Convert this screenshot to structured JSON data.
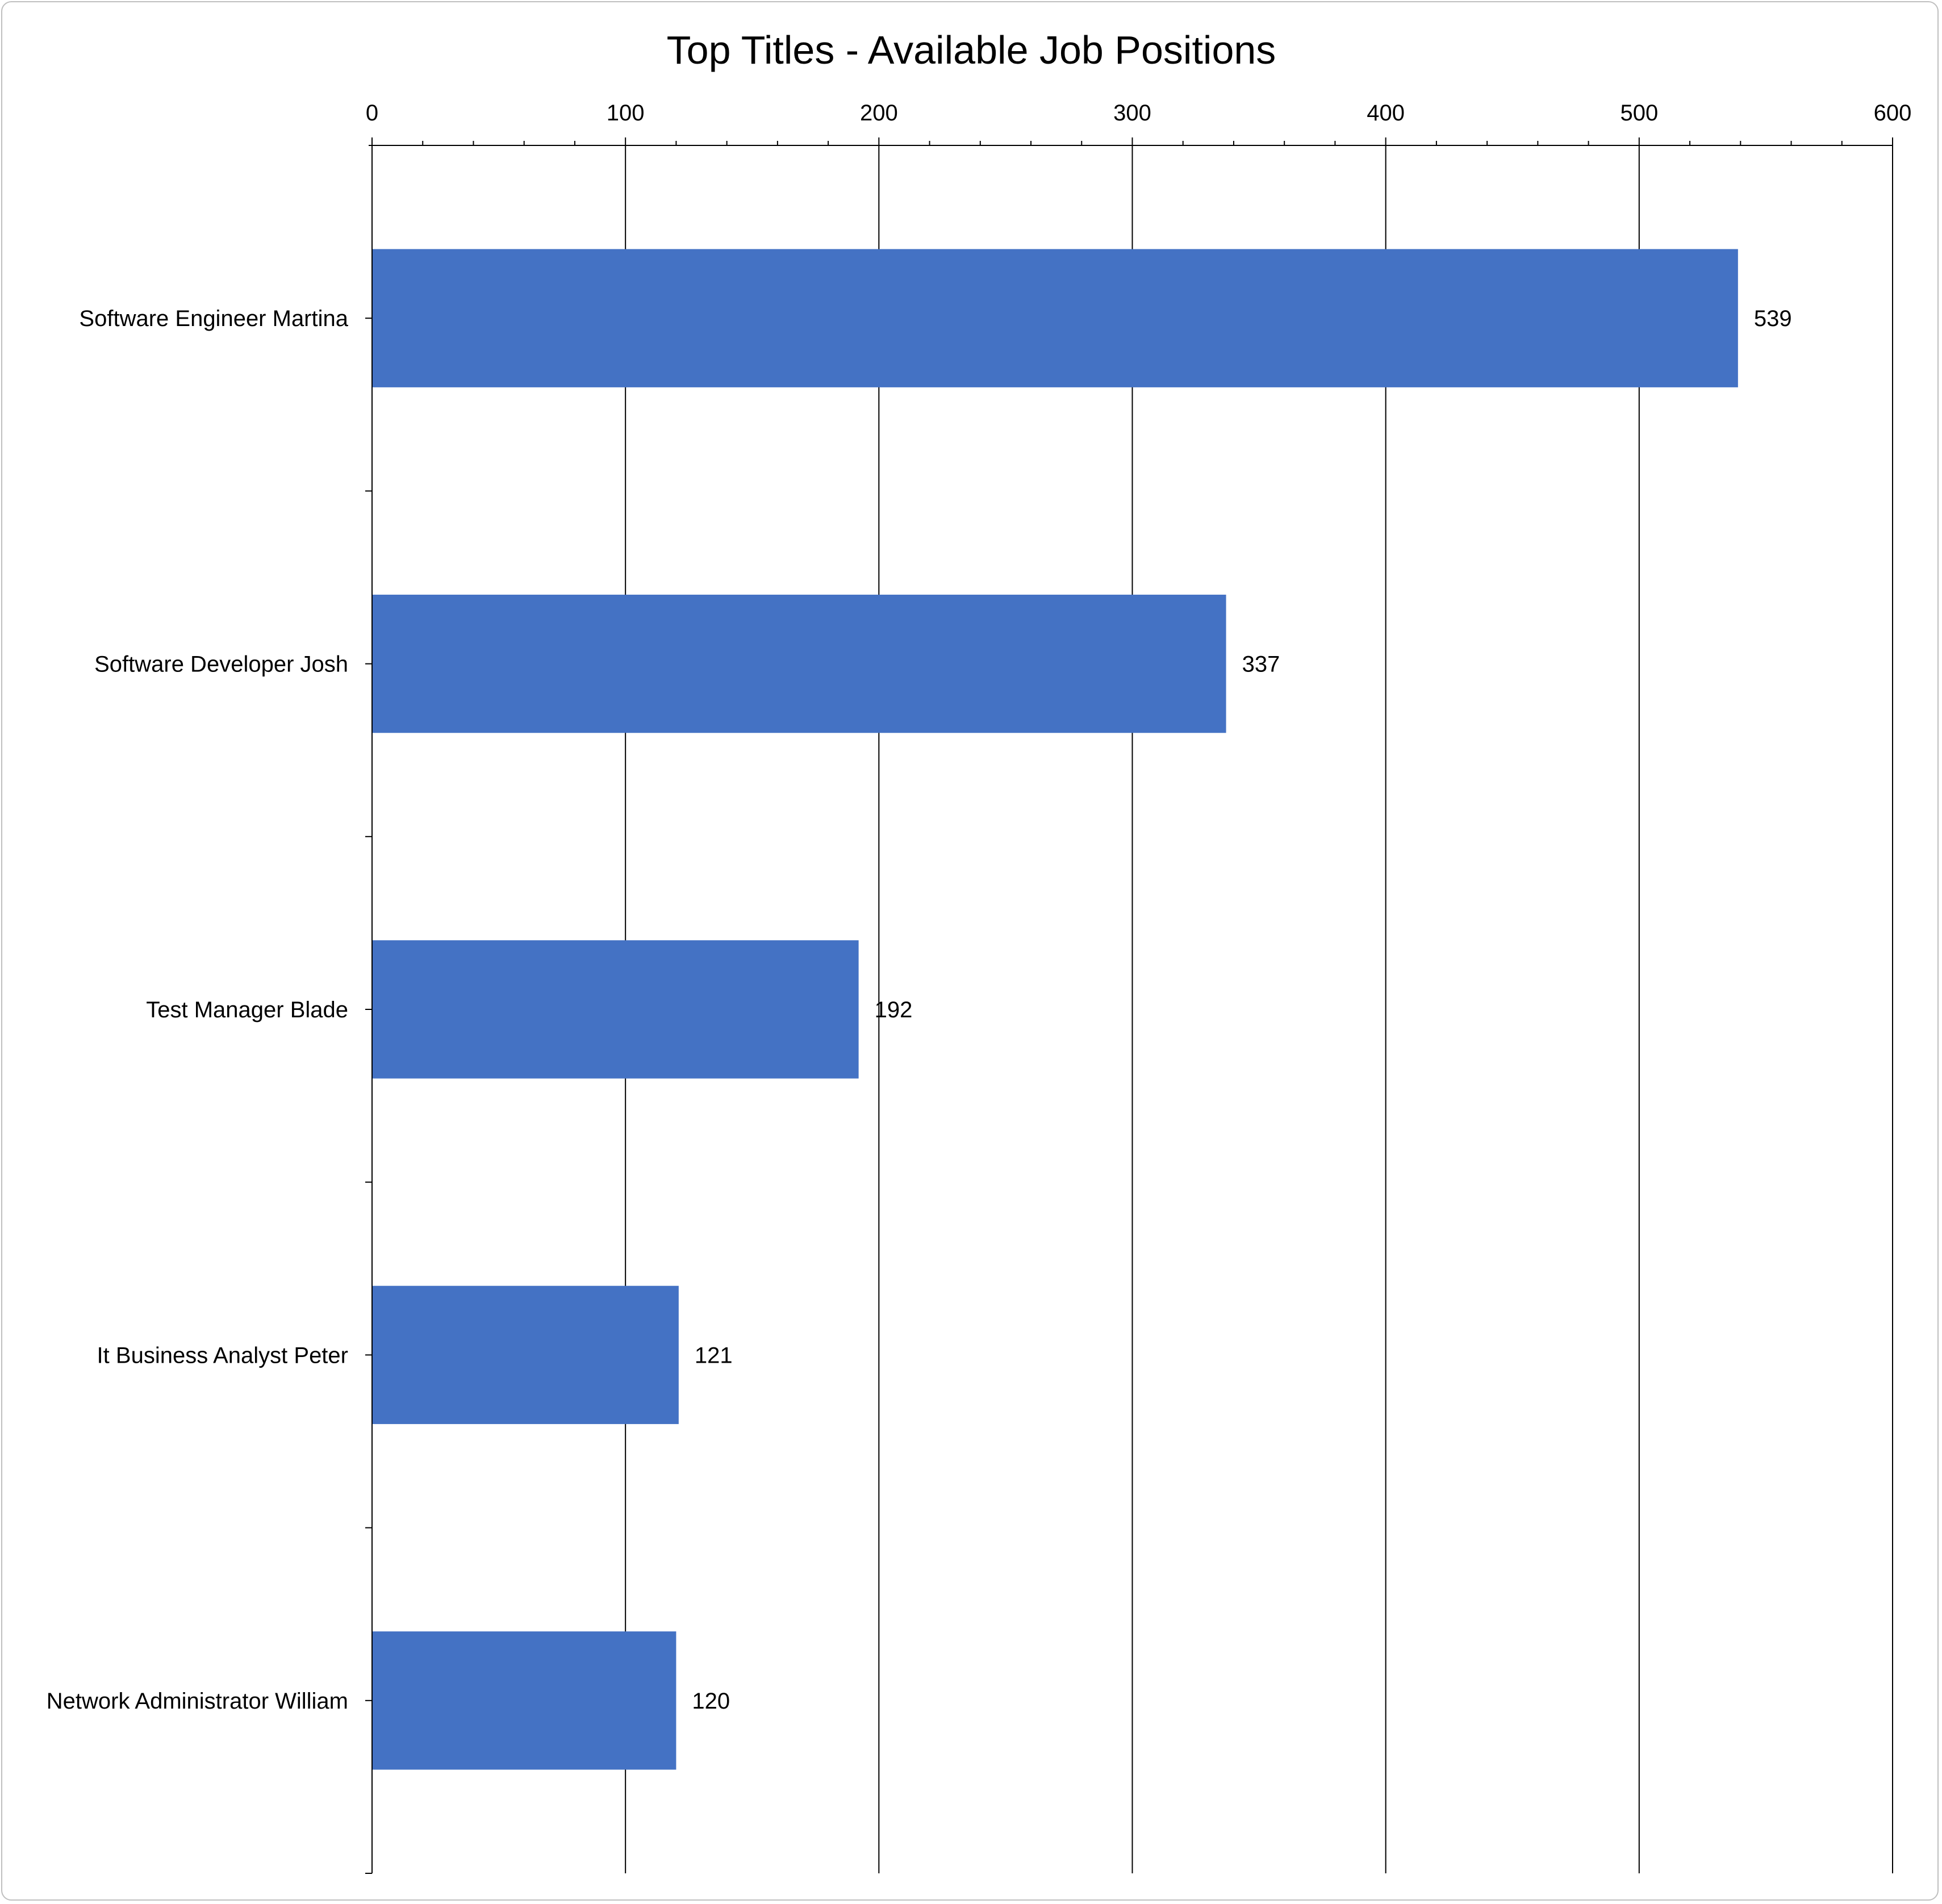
{
  "chart_data": {
    "type": "bar",
    "orientation": "horizontal",
    "title": "Top Titles - Available Job Positions",
    "categories": [
      "Software Engineer Martina",
      "Software Developer Josh",
      "Test Manager Blade",
      "It Business Analyst Peter",
      "Network Administrator William"
    ],
    "values": [
      539,
      337,
      192,
      121,
      120
    ],
    "xlim": [
      0,
      600
    ],
    "x_ticks": [
      0,
      100,
      200,
      300,
      400,
      500,
      600
    ],
    "x_minor_step": 20,
    "x_axis_position": "top",
    "grid": true,
    "data_labels": true,
    "legend": "none",
    "colors": {
      "bar": "#4472c4",
      "grid": "#000000",
      "text": "#000000"
    }
  }
}
